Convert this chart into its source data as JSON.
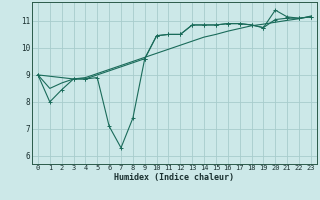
{
  "xlabel": "Humidex (Indice chaleur)",
  "xlim": [
    -0.5,
    23.5
  ],
  "ylim": [
    5.7,
    11.7
  ],
  "yticks": [
    6,
    7,
    8,
    9,
    10,
    11
  ],
  "xticks": [
    0,
    1,
    2,
    3,
    4,
    5,
    6,
    7,
    8,
    9,
    10,
    11,
    12,
    13,
    14,
    15,
    16,
    17,
    18,
    19,
    20,
    21,
    22,
    23
  ],
  "bg_color": "#cce8e8",
  "grid_color": "#a8cccc",
  "line_color": "#1a6b5a",
  "line1_x": [
    0,
    1,
    2,
    3,
    4,
    5,
    6,
    7,
    8,
    9,
    10,
    11,
    12,
    13,
    14,
    15,
    16,
    17,
    18,
    19,
    20,
    21,
    22,
    23
  ],
  "line1_y": [
    9.0,
    8.0,
    8.45,
    8.85,
    8.85,
    8.9,
    7.1,
    6.3,
    7.4,
    9.6,
    10.45,
    10.5,
    10.5,
    10.85,
    10.85,
    10.85,
    10.9,
    10.9,
    10.85,
    10.75,
    11.05,
    11.1,
    11.1,
    11.15
  ],
  "line2_x": [
    0,
    1,
    2,
    3,
    4,
    5,
    6,
    7,
    8,
    9,
    10,
    11,
    12,
    13,
    14,
    15,
    16,
    17,
    18,
    19,
    20,
    21,
    22,
    23
  ],
  "line2_y": [
    9.0,
    8.5,
    8.7,
    8.85,
    8.9,
    9.05,
    9.2,
    9.35,
    9.5,
    9.65,
    9.8,
    9.95,
    10.1,
    10.25,
    10.4,
    10.5,
    10.62,
    10.72,
    10.82,
    10.88,
    10.95,
    11.02,
    11.08,
    11.18
  ],
  "line3_x": [
    0,
    3,
    4,
    9,
    10,
    11,
    12,
    13,
    14,
    15,
    16,
    17,
    18,
    19,
    20,
    21,
    22,
    23
  ],
  "line3_y": [
    9.0,
    8.85,
    8.85,
    9.6,
    10.45,
    10.5,
    10.5,
    10.85,
    10.85,
    10.85,
    10.9,
    10.9,
    10.85,
    10.75,
    11.4,
    11.15,
    11.1,
    11.15
  ]
}
